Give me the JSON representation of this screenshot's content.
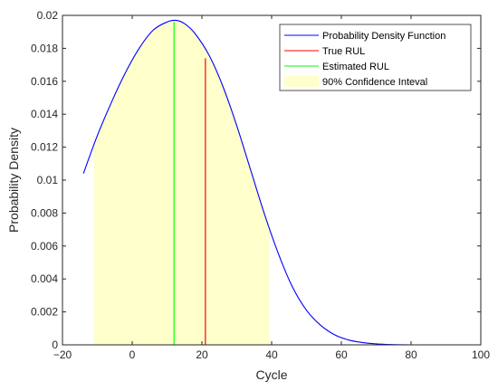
{
  "chart_data": {
    "type": "line",
    "title": "",
    "xlabel": "Cycle",
    "ylabel": "Probability Density",
    "xlim": [
      -20,
      100
    ],
    "ylim": [
      0,
      0.02
    ],
    "x_ticks": [
      -20,
      0,
      20,
      40,
      60,
      80,
      100
    ],
    "y_ticks": [
      0,
      0.002,
      0.004,
      0.006,
      0.008,
      0.01,
      0.012,
      0.014,
      0.016,
      0.018,
      0.02
    ],
    "x_tick_labels": [
      "−20",
      "0",
      "20",
      "40",
      "60",
      "80",
      "100"
    ],
    "y_tick_labels": [
      "0",
      "0.002",
      "0.004",
      "0.006",
      "0.008",
      "0.01",
      "0.012",
      "0.014",
      "0.016",
      "0.018",
      "0.02"
    ],
    "grid": false,
    "legend_placement": "top-right",
    "series": [
      {
        "name": "Probability Density Function",
        "color": "#0000ff",
        "x": [
          -14,
          -10,
          -6,
          -2,
          2,
          6,
          10,
          12.5,
          15,
          18,
          22,
          26,
          30,
          34,
          38,
          42,
          46,
          50,
          54,
          58,
          62,
          66,
          70,
          74,
          78,
          80
        ],
        "y": [
          0.0104,
          0.0127,
          0.0147,
          0.0165,
          0.018,
          0.0191,
          0.0196,
          0.0197,
          0.0195,
          0.0189,
          0.0176,
          0.0157,
          0.0133,
          0.0106,
          0.0079,
          0.0055,
          0.0035,
          0.0021,
          0.0012,
          0.00062,
          0.0003,
          0.00014,
          6e-05,
          2e-05,
          5e-06,
          0.0
        ]
      },
      {
        "name": "True RUL",
        "color": "#ff0000",
        "x": [
          21,
          21
        ],
        "y": [
          0,
          0.0174
        ]
      },
      {
        "name": "Estimated RUL",
        "color": "#00ff00",
        "x": [
          12,
          12
        ],
        "y": [
          0,
          0.0196
        ]
      }
    ],
    "confidence_interval": {
      "name": "90% Confidence Inteval",
      "color": "#ffffcc",
      "x_range": [
        -11,
        39.5
      ]
    }
  }
}
